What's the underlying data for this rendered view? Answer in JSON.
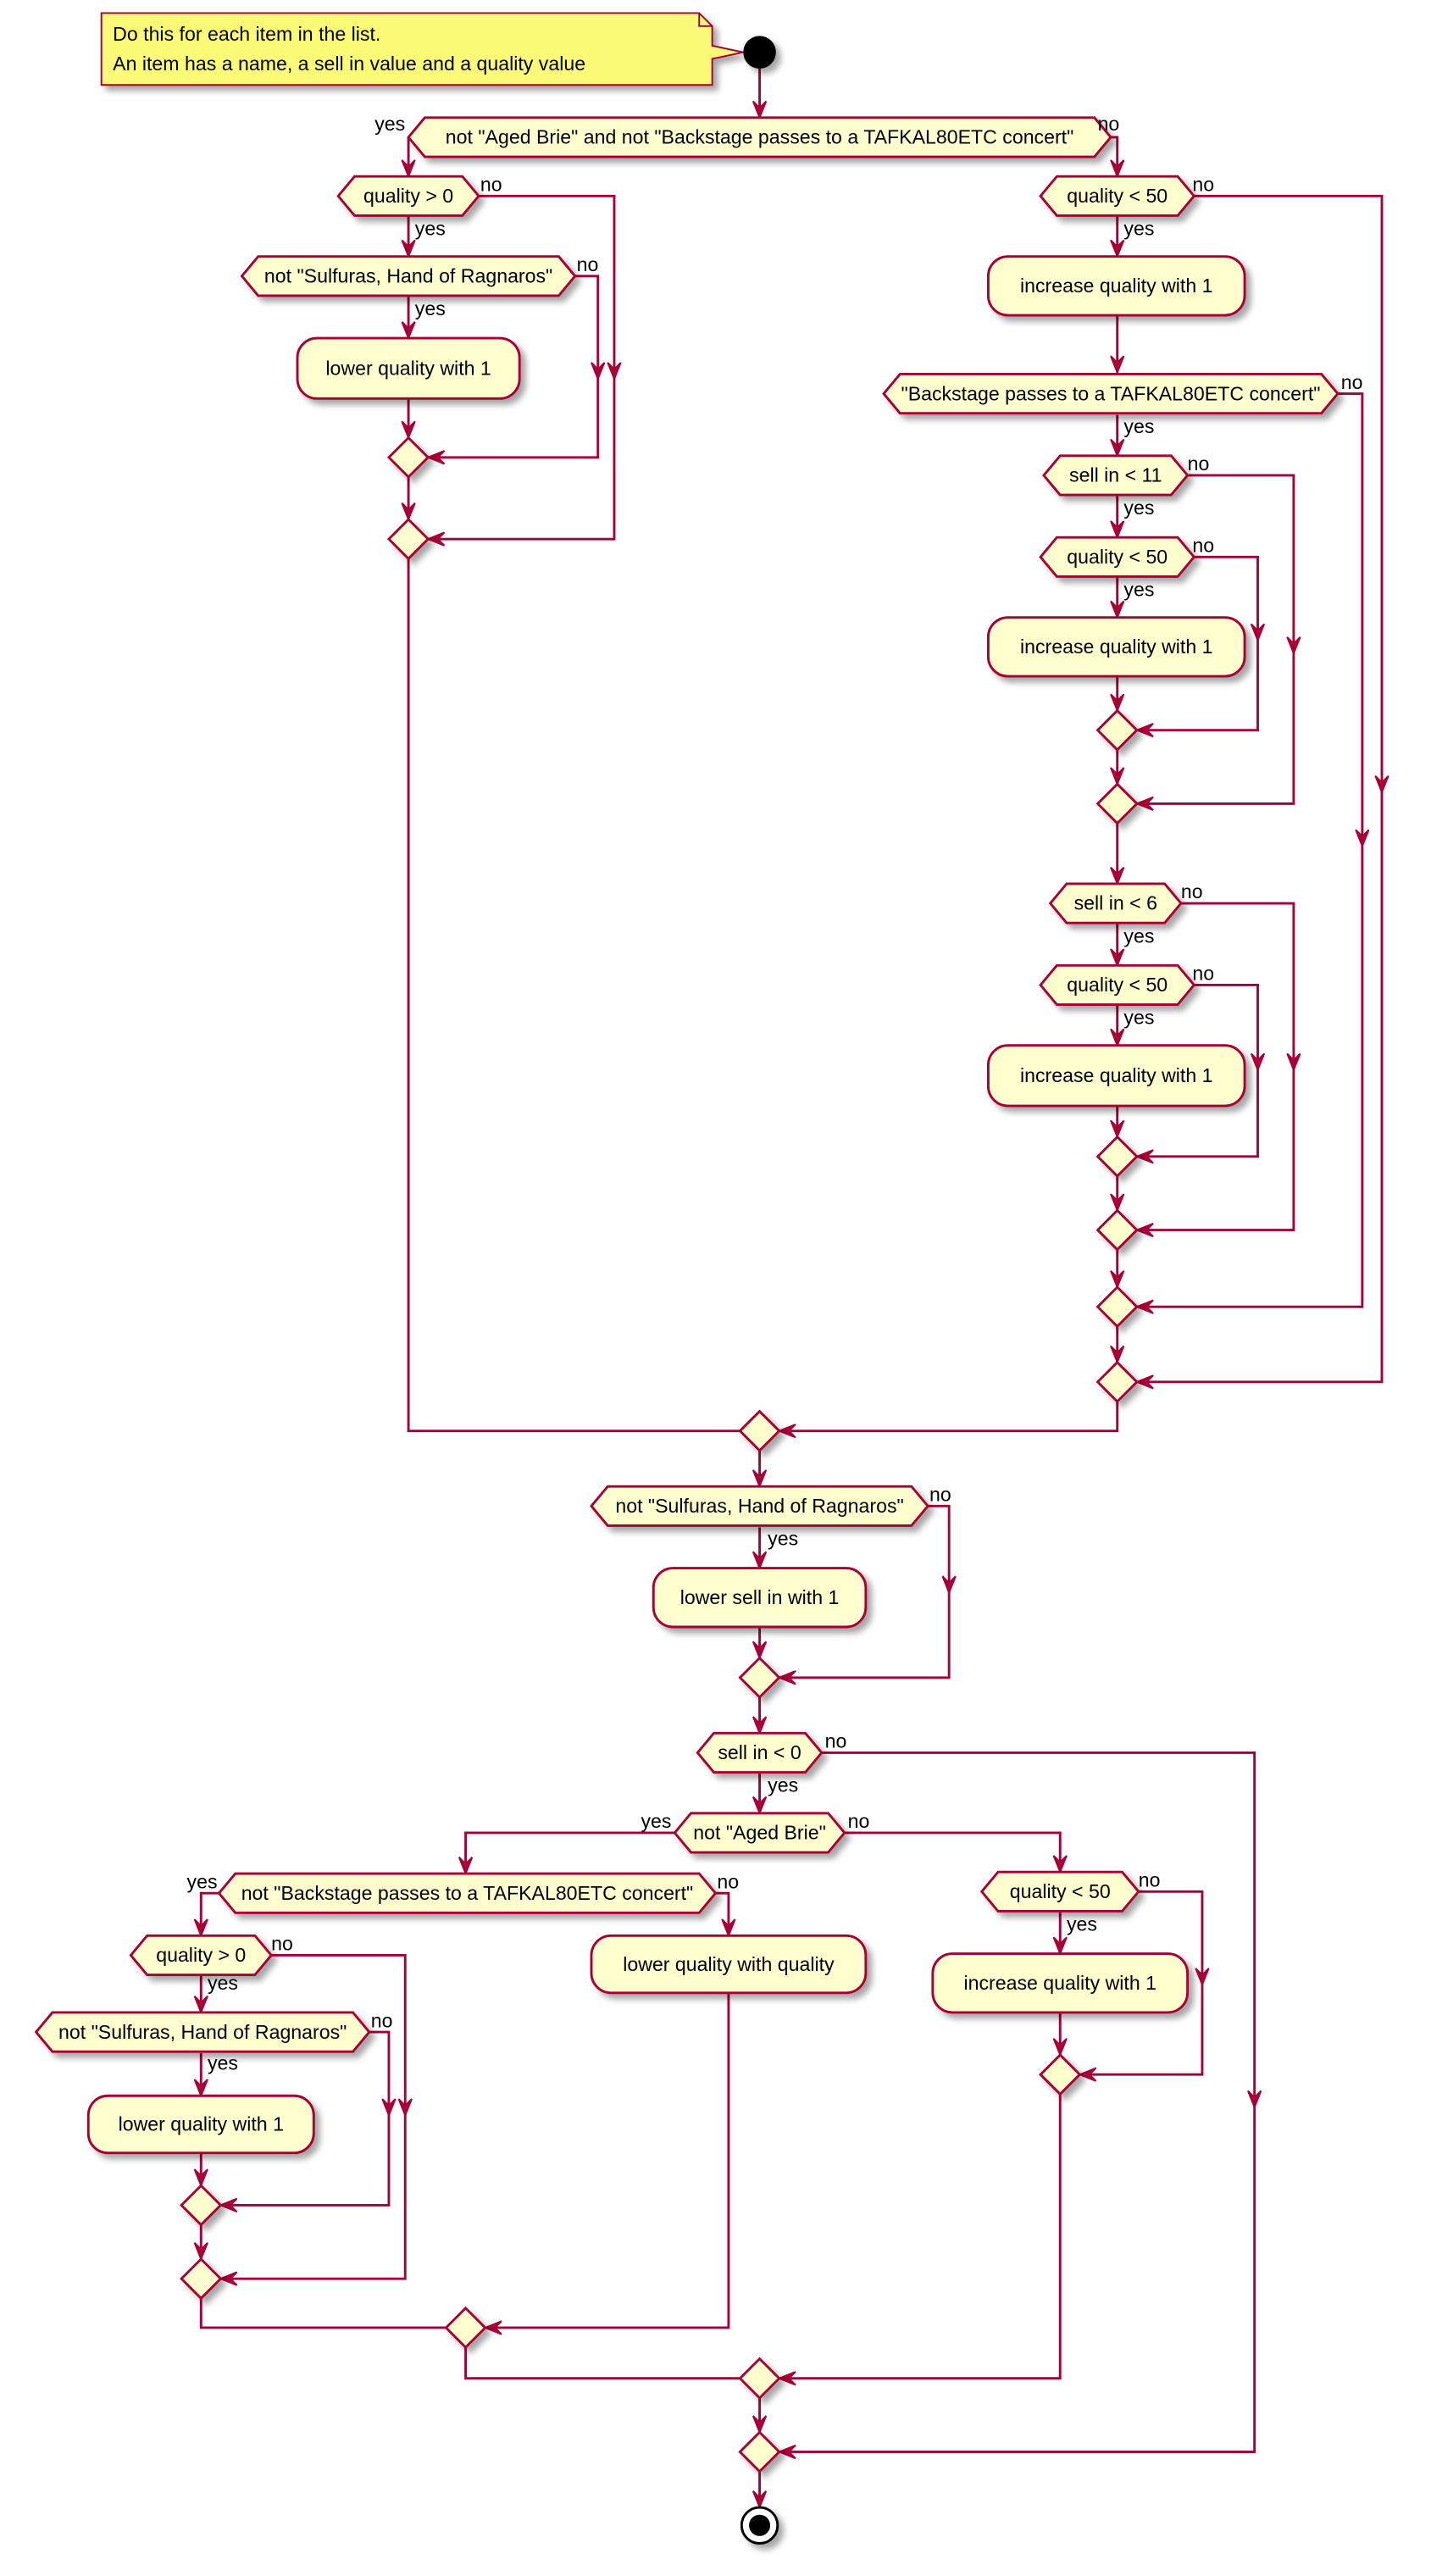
{
  "note": {
    "lines": [
      "Do this for each item in the list.",
      "An item has a name, a sell in value and a quality value"
    ]
  },
  "labels": {
    "yes": "yes",
    "no": "no"
  },
  "conditions": {
    "main": "not \"Aged Brie\" and not \"Backstage passes to a TAFKAL80ETC concert\"",
    "quality_gt_0": "quality > 0",
    "not_sulfuras": "not \"Sulfuras, Hand of Ragnaros\"",
    "quality_lt_50": "quality < 50",
    "is_backstage": "\"Backstage passes to a TAFKAL80ETC concert\"",
    "sell_in_lt_11": "sell in < 11",
    "sell_in_lt_6": "sell in < 6",
    "sell_in_lt_0": "sell in < 0",
    "not_aged_brie": "not \"Aged Brie\"",
    "not_backstage": "not \"Backstage passes to a TAFKAL80ETC concert\""
  },
  "actions": {
    "lower_quality": "lower quality with 1",
    "increase_quality": "increase quality with 1",
    "lower_sell_in": "lower sell in with 1",
    "lower_quality_with_quality": "lower quality with quality"
  },
  "colors": {
    "border": "#A80036",
    "fill": "#FEFECE",
    "note_fill": "#FBFB77",
    "start_end": "#000000"
  }
}
